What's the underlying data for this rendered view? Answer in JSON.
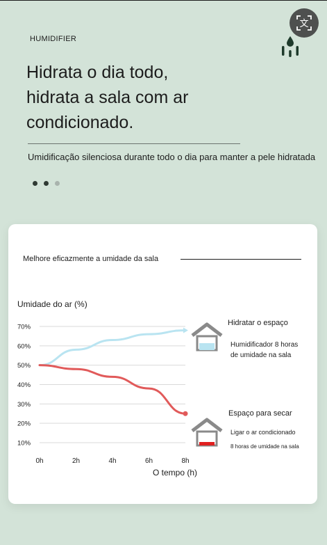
{
  "header": {
    "category": "HUMIDIFIER",
    "headline": [
      "Hidrata o dia todo,",
      "hidrata a sala com ar",
      "condicionado."
    ],
    "subtext": "Umidificação silenciosa durante todo o dia para manter a pele hidratada",
    "translate_icon": "translate-icon",
    "drop_icon": "water-drop-icon",
    "carousel": {
      "count": 3,
      "active": 0
    }
  },
  "card": {
    "title": "Melhore eficazmente a umidade da sala",
    "hydrate": {
      "title": "Hidratar o espaço",
      "line1": "Humidificador 8 horas",
      "line2": "de umidade na sala"
    },
    "dry": {
      "title": "Espaço para secar",
      "line1": "Ligar o ar condicionado",
      "line2": "8 horas de umidade na sala"
    }
  },
  "colors": {
    "background": "#d3e3d8",
    "humidifier_line": "#b9e4f1",
    "ac_line": "#e15a5a",
    "house": "#8a8a8a"
  },
  "chart_data": {
    "type": "line",
    "ylabel": "Umidade do ar (%)",
    "xlabel": "O tempo (h)",
    "x": [
      "0h",
      "2h",
      "4h",
      "6h",
      "8h"
    ],
    "ylim": [
      10,
      70
    ],
    "yticks": [
      "70%",
      "60%",
      "50%",
      "40%",
      "30%",
      "20%",
      "10%"
    ],
    "grid": true,
    "series": [
      {
        "values": [
          50,
          58,
          63,
          66,
          68
        ],
        "color": "#b9e4f1"
      },
      {
        "values": [
          50,
          48,
          44,
          38,
          25
        ],
        "color": "#e15a5a"
      }
    ]
  }
}
